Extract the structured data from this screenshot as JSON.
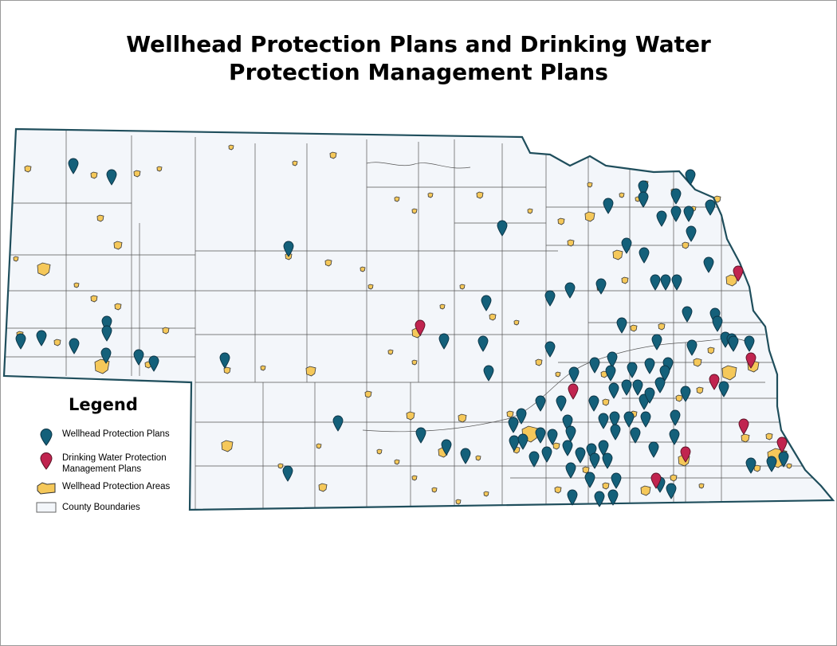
{
  "title": {
    "line1": "Wellhead Protection Plans and Drinking Water",
    "line2": "Protection Management Plans"
  },
  "legend": {
    "title": "Legend",
    "items": [
      {
        "label": "Wellhead Protection Plans",
        "symbol": "pin",
        "color": "#14607a"
      },
      {
        "label": "Drinking Water Protection Management Plans",
        "symbol": "pin",
        "color": "#c0244f"
      },
      {
        "label": "Wellhead Protection Areas",
        "symbol": "area",
        "color": "#f5c85a"
      },
      {
        "label": "County Boundaries",
        "symbol": "box",
        "color": "#f3f6fa"
      }
    ]
  },
  "colors": {
    "wellhead_pin": "#14607a",
    "dwpmp_pin": "#c0244f",
    "protection_area": "#f5c85a",
    "county_fill": "#f3f6fa",
    "state_outline": "#1f4e5c"
  }
}
